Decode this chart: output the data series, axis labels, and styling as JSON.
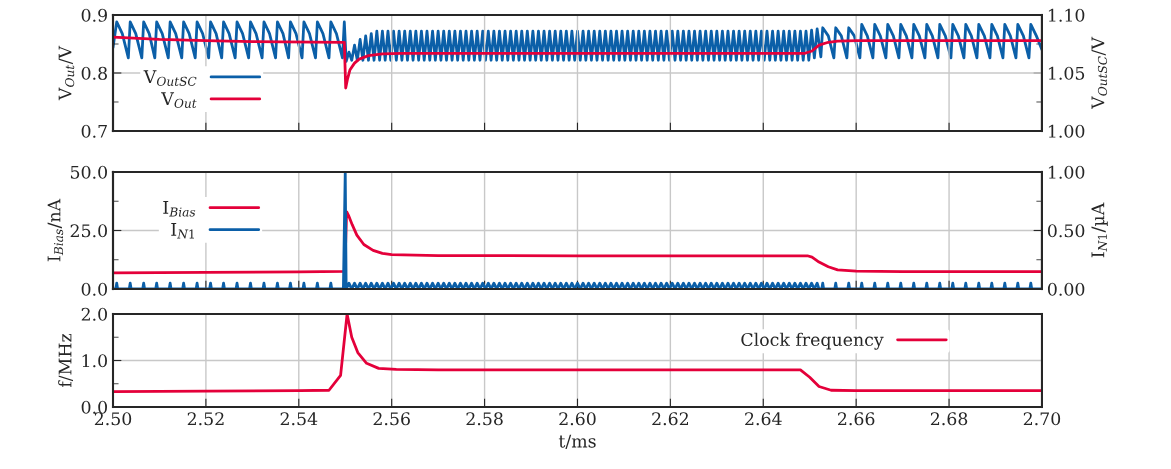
{
  "chart_data": [
    {
      "type": "line",
      "xlim": [
        2.5,
        2.7
      ],
      "xticks": [
        2.5,
        2.52,
        2.54,
        2.56,
        2.58,
        2.6,
        2.62,
        2.64,
        2.66,
        2.68,
        2.7
      ],
      "tick_labels": "y",
      "ylim": [
        0.7,
        0.9
      ],
      "yticks": [
        0.7,
        {
          "value": 0.75,
          "label": null
        },
        0.8,
        {
          "value": 0.85,
          "label": null
        },
        0.9
      ],
      "y2lim": [
        1.0,
        1.1
      ],
      "y2ticks": [
        {
          "value": 1.0,
          "label": "1.00"
        },
        {
          "value": 1.025,
          "label": null
        },
        {
          "value": 1.05,
          "label": "1.05"
        },
        {
          "value": 1.075,
          "label": null
        },
        {
          "value": 1.1,
          "label": "1.10"
        }
      ],
      "ylabel": "V$_{Out}$/V",
      "y2label": "V$_{OutSC}$/V",
      "grid": true,
      "legend": "left",
      "series": [
        {
          "name": "V$_{OutSC}$",
          "color": "#0b5fa8",
          "axis": "y2",
          "x": [
            2.5,
            2.5008,
            2.502,
            2.5033,
            2.5037,
            2.5049,
            2.5062,
            2.5066,
            2.5078,
            2.509,
            2.5094,
            2.5106,
            2.5119,
            2.5123,
            2.5135,
            2.5148,
            2.5152,
            2.5164,
            2.5177,
            2.5181,
            2.5193,
            2.5206,
            2.521,
            2.5222,
            2.5234,
            2.5238,
            2.525,
            2.5263,
            2.5267,
            2.5279,
            2.5292,
            2.5296,
            2.5308,
            2.5321,
            2.5325,
            2.5337,
            2.535,
            2.5354,
            2.5366,
            2.5378,
            2.5382,
            2.5394,
            2.5407,
            2.5411,
            2.5423,
            2.5436,
            2.544,
            2.5452,
            2.5465,
            2.5469,
            2.5481,
            2.5494,
            2.5498,
            2.5502,
            2.5508,
            2.5514,
            2.552,
            2.5526,
            2.5532,
            2.5538,
            2.5544,
            2.555,
            2.5556,
            2.5562,
            2.5568,
            2.5574,
            2.558,
            2.5586,
            2.5592,
            2.5598,
            2.5604,
            2.561,
            2.5616,
            2.5622,
            2.5628,
            2.5634,
            2.564,
            2.5646,
            2.5652,
            2.5658,
            2.5664,
            2.567,
            2.5676,
            2.5682,
            2.5688,
            2.5694,
            2.57,
            2.5706,
            2.5712,
            2.5718,
            2.5724,
            2.573,
            2.5736,
            2.5742,
            2.5748,
            2.5754,
            2.576,
            2.5766,
            2.5772,
            2.5778,
            2.5784,
            2.579,
            2.5796,
            2.5802,
            2.5808,
            2.5814,
            2.582,
            2.5826,
            2.5832,
            2.5838,
            2.5844,
            2.585,
            2.5856,
            2.5862,
            2.5868,
            2.5874,
            2.588,
            2.5886,
            2.5892,
            2.5898,
            2.5904,
            2.591,
            2.5916,
            2.5922,
            2.5928,
            2.5934,
            2.594,
            2.5946,
            2.5952,
            2.5958,
            2.5964,
            2.597,
            2.5976,
            2.5982,
            2.5988,
            2.5994,
            2.6,
            2.6006,
            2.6012,
            2.6018,
            2.6024,
            2.603,
            2.6036,
            2.6042,
            2.6048,
            2.6054,
            2.606,
            2.6066,
            2.6072,
            2.6078,
            2.6084,
            2.609,
            2.6096,
            2.6102,
            2.6108,
            2.6114,
            2.612,
            2.6126,
            2.6132,
            2.6138,
            2.6144,
            2.615,
            2.6156,
            2.6162,
            2.6168,
            2.6174,
            2.618,
            2.6186,
            2.6192,
            2.6198,
            2.6204,
            2.621,
            2.6216,
            2.6222,
            2.6228,
            2.6234,
            2.624,
            2.6246,
            2.6252,
            2.6258,
            2.6264,
            2.627,
            2.6276,
            2.6282,
            2.6288,
            2.6294,
            2.63,
            2.6306,
            2.6312,
            2.6318,
            2.6324,
            2.633,
            2.6336,
            2.6342,
            2.6348,
            2.6354,
            2.636,
            2.6366,
            2.6372,
            2.6378,
            2.6384,
            2.639,
            2.6396,
            2.6402,
            2.6408,
            2.6414,
            2.642,
            2.6426,
            2.6432,
            2.6438,
            2.6444,
            2.645,
            2.6456,
            2.6462,
            2.6468,
            2.6474,
            2.648,
            2.6486,
            2.6492,
            2.6498,
            2.6504,
            2.651,
            2.6516,
            2.6524,
            2.6528,
            2.654,
            2.6552,
            2.6556,
            2.6568,
            2.658,
            2.6584,
            2.6596,
            2.6608,
            2.6612,
            2.6624,
            2.6636,
            2.664,
            2.6652,
            2.6664,
            2.6668,
            2.668,
            2.6692,
            2.6696,
            2.6708,
            2.672,
            2.6724,
            2.6736,
            2.6748,
            2.6752,
            2.6764,
            2.6776,
            2.678,
            2.6792,
            2.6804,
            2.6808,
            2.682,
            2.6832,
            2.6836,
            2.6848,
            2.686,
            2.6864,
            2.6876,
            2.6888,
            2.6892,
            2.6904,
            2.6916,
            2.692,
            2.6932,
            2.6944,
            2.6948,
            2.696,
            2.6972,
            2.6976,
            2.6988,
            2.7
          ],
          "values": [
            1.072,
            1.094,
            1.084,
            1.063,
            1.094,
            1.084,
            1.063,
            1.094,
            1.084,
            1.063,
            1.094,
            1.084,
            1.063,
            1.094,
            1.084,
            1.063,
            1.094,
            1.084,
            1.063,
            1.094,
            1.084,
            1.063,
            1.094,
            1.084,
            1.063,
            1.094,
            1.084,
            1.063,
            1.094,
            1.084,
            1.063,
            1.094,
            1.084,
            1.063,
            1.094,
            1.084,
            1.063,
            1.094,
            1.084,
            1.063,
            1.094,
            1.084,
            1.063,
            1.094,
            1.084,
            1.063,
            1.094,
            1.084,
            1.063,
            1.094,
            1.084,
            1.063,
            1.094,
            1.06,
            1.068,
            1.061,
            1.074,
            1.061,
            1.079,
            1.061,
            1.082,
            1.061,
            1.084,
            1.061,
            1.086,
            1.061,
            1.086,
            1.061,
            1.086,
            1.061,
            1.086,
            1.061,
            1.086,
            1.061,
            1.086,
            1.061,
            1.086,
            1.061,
            1.086,
            1.061,
            1.086,
            1.061,
            1.086,
            1.061,
            1.086,
            1.061,
            1.086,
            1.061,
            1.086,
            1.061,
            1.086,
            1.061,
            1.086,
            1.061,
            1.086,
            1.061,
            1.086,
            1.061,
            1.086,
            1.061,
            1.086,
            1.061,
            1.086,
            1.061,
            1.086,
            1.061,
            1.086,
            1.061,
            1.086,
            1.061,
            1.086,
            1.061,
            1.086,
            1.061,
            1.086,
            1.061,
            1.086,
            1.061,
            1.086,
            1.061,
            1.086,
            1.061,
            1.086,
            1.061,
            1.086,
            1.061,
            1.086,
            1.061,
            1.086,
            1.061,
            1.086,
            1.061,
            1.086,
            1.061,
            1.086,
            1.061,
            1.086,
            1.061,
            1.086,
            1.061,
            1.086,
            1.061,
            1.086,
            1.061,
            1.086,
            1.061,
            1.086,
            1.061,
            1.086,
            1.061,
            1.086,
            1.061,
            1.086,
            1.061,
            1.086,
            1.061,
            1.086,
            1.061,
            1.086,
            1.061,
            1.086,
            1.061,
            1.086,
            1.061,
            1.086,
            1.061,
            1.086,
            1.061,
            1.086,
            1.061,
            1.086,
            1.061,
            1.086,
            1.061,
            1.086,
            1.061,
            1.086,
            1.061,
            1.086,
            1.061,
            1.086,
            1.061,
            1.086,
            1.061,
            1.086,
            1.061,
            1.086,
            1.061,
            1.086,
            1.061,
            1.086,
            1.061,
            1.086,
            1.061,
            1.086,
            1.061,
            1.086,
            1.061,
            1.086,
            1.061,
            1.086,
            1.061,
            1.086,
            1.061,
            1.086,
            1.061,
            1.086,
            1.061,
            1.086,
            1.061,
            1.086,
            1.061,
            1.086,
            1.061,
            1.086,
            1.061,
            1.086,
            1.061,
            1.086,
            1.061,
            1.087,
            1.063,
            1.088,
            1.064,
            1.089,
            1.082,
            1.063,
            1.089,
            1.082,
            1.063,
            1.089,
            1.082,
            1.063,
            1.092,
            1.082,
            1.063,
            1.092,
            1.082,
            1.063,
            1.092,
            1.082,
            1.063,
            1.092,
            1.082,
            1.063,
            1.092,
            1.082,
            1.063,
            1.092,
            1.082,
            1.063,
            1.092,
            1.082,
            1.063,
            1.092,
            1.082,
            1.063,
            1.092,
            1.082,
            1.063,
            1.092,
            1.082,
            1.063,
            1.092,
            1.082,
            1.063,
            1.092,
            1.082,
            1.063,
            1.092,
            1.082,
            1.063,
            1.092,
            1.082,
            1.07
          ]
        },
        {
          "name": "V$_{Out}$",
          "color": "#e4003a",
          "x": [
            2.5,
            2.51,
            2.52,
            2.53,
            2.5498,
            2.5501,
            2.5505,
            2.551,
            2.552,
            2.553,
            2.555,
            2.558,
            2.562,
            2.57,
            2.6,
            2.649,
            2.6505,
            2.652,
            2.654,
            2.656,
            2.66,
            2.7
          ],
          "values": [
            0.862,
            0.858,
            0.856,
            0.854,
            0.853,
            0.774,
            0.79,
            0.805,
            0.817,
            0.824,
            0.83,
            0.833,
            0.834,
            0.834,
            0.834,
            0.834,
            0.838,
            0.848,
            0.853,
            0.855,
            0.856,
            0.856
          ]
        }
      ]
    },
    {
      "type": "line",
      "xlim": [
        2.5,
        2.7
      ],
      "xticks": [
        2.5,
        2.52,
        2.54,
        2.56,
        2.58,
        2.6,
        2.62,
        2.64,
        2.66,
        2.68,
        2.7
      ],
      "tick_labels": "y",
      "ylim": [
        0,
        50
      ],
      "yticks": [
        {
          "value": 0,
          "label": "0.0"
        },
        {
          "value": 12.5,
          "label": null
        },
        {
          "value": 25,
          "label": "25.0"
        },
        {
          "value": 37.5,
          "label": null
        },
        {
          "value": 50,
          "label": "50.0"
        }
      ],
      "y2lim": [
        0,
        1
      ],
      "y2ticks": [
        {
          "value": 0,
          "label": "0.00"
        },
        {
          "value": 0.25,
          "label": null
        },
        {
          "value": 0.5,
          "label": "0.50"
        },
        {
          "value": 0.75,
          "label": null
        },
        {
          "value": 1,
          "label": "1.00"
        }
      ],
      "ylabel": "I$_{Bias}$/nA",
      "y2label": "I$_{N1}$/µA",
      "grid": true,
      "legend": "top left",
      "series": [
        {
          "name": "I$_{Bias}$",
          "color": "#e4003a",
          "x": [
            2.5,
            2.52,
            2.54,
            2.5499,
            2.5503,
            2.5507,
            2.5515,
            2.5525,
            2.554,
            2.556,
            2.558,
            2.56,
            2.57,
            2.6,
            2.6495,
            2.6505,
            2.652,
            2.654,
            2.656,
            2.66,
            2.67,
            2.7
          ],
          "values": [
            6.9,
            7.1,
            7.3,
            7.5,
            33.0,
            31.5,
            27.5,
            23.0,
            19.0,
            16.5,
            15.2,
            14.7,
            14.3,
            14.2,
            14.2,
            13.6,
            11.5,
            9.5,
            8.2,
            7.6,
            7.4,
            7.4
          ]
        },
        {
          "name": "I$_{N1}$",
          "color": "#0b5fa8",
          "axis": "y2",
          "x": [
            2.5,
            2.5006,
            2.5008,
            2.501,
            2.5035,
            2.5037,
            2.5039,
            2.5064,
            2.5066,
            2.5068,
            2.5092,
            2.5094,
            2.5096,
            2.5121,
            2.5123,
            2.5125,
            2.515,
            2.5152,
            2.5154,
            2.5179,
            2.5181,
            2.5183,
            2.5208,
            2.521,
            2.5212,
            2.5236,
            2.5238,
            2.524,
            2.5265,
            2.5267,
            2.5269,
            2.5294,
            2.5296,
            2.5298,
            2.5323,
            2.5325,
            2.5327,
            2.5352,
            2.5354,
            2.5356,
            2.538,
            2.5382,
            2.5384,
            2.5409,
            2.5411,
            2.5413,
            2.5438,
            2.544,
            2.5442,
            2.5467,
            2.5469,
            2.5471,
            2.5496,
            2.55,
            2.5502,
            2.5508,
            2.5514,
            2.552,
            2.5526,
            2.5532,
            2.5538,
            2.5544,
            2.555,
            2.5556,
            2.5562,
            2.5568,
            2.5574,
            2.558,
            2.5586,
            2.5592,
            2.5598,
            2.5604,
            2.561,
            2.5616,
            2.5622,
            2.5628,
            2.5634,
            2.564,
            2.5646,
            2.5652,
            2.5658,
            2.5664,
            2.567,
            2.5676,
            2.5682,
            2.5688,
            2.5694,
            2.57,
            2.5706,
            2.5712,
            2.5718,
            2.5724,
            2.573,
            2.5736,
            2.5742,
            2.5748,
            2.5754,
            2.576,
            2.5766,
            2.5772,
            2.5778,
            2.5784,
            2.579,
            2.5796,
            2.5802,
            2.5808,
            2.5814,
            2.582,
            2.5826,
            2.5832,
            2.5838,
            2.5844,
            2.585,
            2.5856,
            2.5862,
            2.5868,
            2.5874,
            2.588,
            2.5886,
            2.5892,
            2.5898,
            2.5904,
            2.591,
            2.5916,
            2.5922,
            2.5928,
            2.5934,
            2.594,
            2.5946,
            2.5952,
            2.5958,
            2.5964,
            2.597,
            2.5976,
            2.5982,
            2.5988,
            2.5994,
            2.6,
            2.6006,
            2.6012,
            2.6018,
            2.6024,
            2.603,
            2.6036,
            2.6042,
            2.6048,
            2.6054,
            2.606,
            2.6066,
            2.6072,
            2.6078,
            2.6084,
            2.609,
            2.6096,
            2.6102,
            2.6108,
            2.6114,
            2.612,
            2.6126,
            2.6132,
            2.6138,
            2.6144,
            2.615,
            2.6156,
            2.6162,
            2.6168,
            2.6174,
            2.618,
            2.6186,
            2.6192,
            2.6198,
            2.6204,
            2.621,
            2.6216,
            2.6222,
            2.6228,
            2.6234,
            2.624,
            2.6246,
            2.6252,
            2.6258,
            2.6264,
            2.627,
            2.6276,
            2.6282,
            2.6288,
            2.6294,
            2.63,
            2.6306,
            2.6312,
            2.6318,
            2.6324,
            2.633,
            2.6336,
            2.6342,
            2.6348,
            2.6354,
            2.636,
            2.6366,
            2.6372,
            2.6378,
            2.6384,
            2.639,
            2.6396,
            2.6402,
            2.6408,
            2.6414,
            2.642,
            2.6426,
            2.6432,
            2.6438,
            2.6444,
            2.645,
            2.6456,
            2.6462,
            2.6468,
            2.6474,
            2.648,
            2.6486,
            2.6492,
            2.6498,
            2.6504,
            2.651,
            2.6516,
            2.652,
            2.6526,
            2.6528,
            2.653,
            2.6554,
            2.6556,
            2.6558,
            2.6582,
            2.6584,
            2.6586,
            2.661,
            2.6612,
            2.6614,
            2.6638,
            2.664,
            2.6642,
            2.6666,
            2.6668,
            2.667,
            2.6694,
            2.6696,
            2.6698,
            2.6722,
            2.6724,
            2.6726,
            2.675,
            2.6752,
            2.6754,
            2.6778,
            2.678,
            2.6782,
            2.6806,
            2.6808,
            2.681,
            2.6834,
            2.6836,
            2.6838,
            2.6862,
            2.6864,
            2.6866,
            2.689,
            2.6892,
            2.6894,
            2.6918,
            2.692,
            2.6922,
            2.6946,
            2.6948,
            2.695,
            2.6974,
            2.6976,
            2.6978,
            2.7
          ],
          "values": [
            0,
            0,
            0.05,
            0,
            0,
            0.05,
            0,
            0,
            0.05,
            0,
            0,
            0.05,
            0,
            0,
            0.05,
            0,
            0,
            0.05,
            0,
            0,
            0.05,
            0,
            0,
            0.05,
            0,
            0,
            0.05,
            0,
            0,
            0.05,
            0,
            0,
            0.05,
            0,
            0,
            0.05,
            0,
            0,
            0.05,
            0,
            0,
            0.05,
            0,
            0,
            0.05,
            0,
            0,
            0.05,
            0,
            0,
            0.05,
            0,
            0,
            1.0,
            0,
            0.05,
            0,
            0.05,
            0,
            0.05,
            0,
            0.05,
            0,
            0.05,
            0,
            0.05,
            0,
            0.05,
            0,
            0.05,
            0,
            0.05,
            0,
            0.05,
            0,
            0.05,
            0,
            0.05,
            0,
            0.05,
            0,
            0.05,
            0,
            0.05,
            0,
            0.05,
            0,
            0.05,
            0,
            0.05,
            0,
            0.05,
            0,
            0.05,
            0,
            0.05,
            0,
            0.05,
            0,
            0.05,
            0,
            0.05,
            0,
            0.05,
            0,
            0.05,
            0,
            0.05,
            0,
            0.05,
            0,
            0.05,
            0,
            0.05,
            0,
            0.05,
            0,
            0.05,
            0,
            0.05,
            0,
            0.05,
            0,
            0.05,
            0,
            0.05,
            0,
            0.05,
            0,
            0.05,
            0,
            0.05,
            0,
            0.05,
            0,
            0.05,
            0,
            0.05,
            0,
            0.05,
            0,
            0.05,
            0,
            0.05,
            0,
            0.05,
            0,
            0.05,
            0,
            0.05,
            0,
            0.05,
            0,
            0.05,
            0,
            0.05,
            0,
            0.05,
            0,
            0.05,
            0,
            0.05,
            0,
            0.05,
            0,
            0.05,
            0,
            0.05,
            0,
            0.05,
            0,
            0.05,
            0,
            0.05,
            0,
            0.05,
            0,
            0.05,
            0,
            0.05,
            0,
            0.05,
            0,
            0.05,
            0,
            0.05,
            0,
            0.05,
            0,
            0.05,
            0,
            0.05,
            0,
            0.05,
            0,
            0.05,
            0,
            0.05,
            0,
            0.05,
            0,
            0.05,
            0,
            0.05,
            0,
            0.05,
            0,
            0.05,
            0,
            0.05,
            0,
            0.05,
            0,
            0.05,
            0,
            0.05,
            0,
            0.05,
            0,
            0.05,
            0,
            0.05,
            0,
            0.05,
            0,
            0,
            0.05,
            0,
            0,
            0.05,
            0,
            0,
            0.05,
            0,
            0,
            0.05,
            0,
            0,
            0.05,
            0,
            0,
            0.05,
            0,
            0,
            0.05,
            0,
            0,
            0.05,
            0,
            0,
            0.05,
            0,
            0,
            0.05,
            0,
            0,
            0.05,
            0,
            0,
            0.05,
            0,
            0,
            0.05,
            0,
            0,
            0.05,
            0,
            0,
            0.05,
            0,
            0,
            0.05,
            0,
            0,
            0.05,
            0,
            0
          ]
        }
      ]
    },
    {
      "type": "line",
      "xlim": [
        2.5,
        2.7
      ],
      "xticks": [
        {
          "value": 2.5,
          "label": "2.50"
        },
        2.52,
        2.54,
        2.56,
        2.58,
        {
          "value": 2.6,
          "label": "2.60"
        },
        2.62,
        2.64,
        2.66,
        2.68,
        {
          "value": 2.7,
          "label": "2.70"
        }
      ],
      "ylim": [
        0,
        2
      ],
      "yticks": [
        {
          "value": 0,
          "label": "0.0"
        },
        {
          "value": 0.5,
          "label": null
        },
        {
          "value": 1,
          "label": "1.0"
        },
        {
          "value": 1.5,
          "label": null
        },
        {
          "value": 2,
          "label": "2.0"
        }
      ],
      "ylabel": "f/MHz",
      "xlabel": "t/ms",
      "grid": true,
      "legend": "top right",
      "series": [
        {
          "name": "Clock frequency",
          "color": "#e4003a",
          "x": [
            2.5,
            2.52,
            2.54,
            2.5465,
            2.549,
            2.5504,
            2.5514,
            2.5527,
            2.5546,
            2.5572,
            2.561,
            2.57,
            2.6,
            2.648,
            2.65,
            2.652,
            2.6546,
            2.66,
            2.7
          ],
          "values": [
            0.33,
            0.34,
            0.35,
            0.36,
            0.68,
            2.0,
            1.5,
            1.17,
            0.94,
            0.83,
            0.81,
            0.8,
            0.8,
            0.8,
            0.64,
            0.44,
            0.36,
            0.35,
            0.35
          ]
        }
      ]
    }
  ]
}
